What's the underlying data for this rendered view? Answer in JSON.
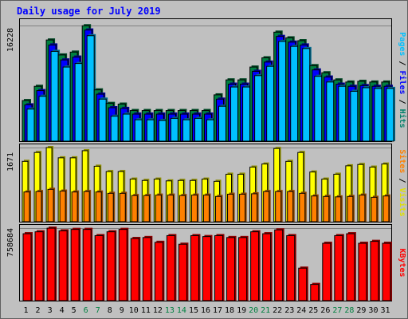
{
  "chart_data": {
    "type": "bar",
    "title": "Daily usage for July 2019",
    "categories": [
      "1",
      "2",
      "3",
      "4",
      "5",
      "6",
      "7",
      "8",
      "9",
      "10",
      "11",
      "12",
      "13",
      "14",
      "15",
      "16",
      "17",
      "18",
      "19",
      "20",
      "21",
      "22",
      "23",
      "24",
      "25",
      "26",
      "27",
      "28",
      "29",
      "30",
      "31"
    ],
    "weekend_days": [
      "6",
      "7",
      "13",
      "14",
      "20",
      "21",
      "27",
      "28"
    ],
    "panels": [
      {
        "name": "hits-files-pages",
        "max_label": "16228",
        "max_value": 16228,
        "side_labels": [
          {
            "text": "Pages",
            "color": "#00c0ff"
          },
          {
            "text": " / ",
            "color": "#000000"
          },
          {
            "text": "Files",
            "color": "#0000ff"
          },
          {
            "text": " / ",
            "color": "#000000"
          },
          {
            "text": "Hits",
            "color": "#00806a"
          }
        ],
        "series": [
          {
            "name": "Hits",
            "color": "#008040",
            "values": [
              5700,
              7700,
              14200,
              12100,
              12500,
              16200,
              7200,
              5300,
              5200,
              4300,
              4300,
              4300,
              4300,
              4300,
              4300,
              4300,
              6500,
              8600,
              8600,
              10400,
              11700,
              15300,
              14500,
              14100,
              10600,
              9600,
              8600,
              8300,
              8400,
              8300,
              8300
            ]
          },
          {
            "name": "Files",
            "color": "#0000ff",
            "values": [
              5100,
              7100,
              13500,
              11400,
              11800,
              15600,
              6600,
              4700,
              4600,
              3800,
              3800,
              3800,
              3800,
              3800,
              3800,
              3800,
              5900,
              8000,
              8000,
              9800,
              11100,
              14700,
              13900,
              13500,
              10000,
              9000,
              8000,
              7700,
              7800,
              7700,
              7700
            ]
          },
          {
            "name": "Pages",
            "color": "#00c0ff",
            "values": [
              4500,
              6300,
              12600,
              10400,
              10900,
              14800,
              5900,
              3500,
              3800,
              3000,
              3000,
              2900,
              3200,
              3000,
              3200,
              3000,
              4900,
              7600,
              7600,
              9200,
              10500,
              14000,
              13300,
              13000,
              9100,
              8300,
              7700,
              7000,
              7500,
              7400,
              7400
            ]
          }
        ]
      },
      {
        "name": "visits-sites",
        "max_label": "1671",
        "max_value": 1671,
        "side_labels": [
          {
            "text": "Sites",
            "color": "#ff8000"
          },
          {
            "text": " / ",
            "color": "#000000"
          },
          {
            "text": "Visits",
            "color": "#e0e000"
          }
        ],
        "series": [
          {
            "name": "Visits",
            "color": "#ffff00",
            "values": [
              1360,
              1560,
              1670,
              1440,
              1440,
              1600,
              1250,
              1130,
              1130,
              960,
              930,
              960,
              920,
              930,
              930,
              960,
              910,
              1070,
              1070,
              1230,
              1300,
              1650,
              1360,
              1560,
              1120,
              960,
              1070,
              1260,
              1290,
              1230,
              1300
            ]
          },
          {
            "name": "Sites",
            "color": "#ff8000",
            "values": [
              670,
              680,
              730,
              690,
              670,
              680,
              670,
              640,
              640,
              590,
              590,
              600,
              600,
              590,
              600,
              600,
              570,
              620,
              620,
              630,
              680,
              680,
              680,
              640,
              580,
              570,
              560,
              570,
              600,
              550,
              580
            ]
          }
        ]
      },
      {
        "name": "kbytes",
        "max_label": "758684",
        "max_value": 758684,
        "side_labels": [
          {
            "text": "KBytes",
            "color": "#ff0000"
          }
        ],
        "series": [
          {
            "name": "KBytes",
            "color": "#ff0000",
            "values": [
              700000,
              720000,
              758000,
              730000,
              745000,
              745000,
              680000,
              720000,
              745000,
              650000,
              660000,
              610000,
              680000,
              590000,
              680000,
              670000,
              680000,
              660000,
              660000,
              720000,
              700000,
              740000,
              680000,
              340000,
              170000,
              600000,
              680000,
              700000,
              600000,
              620000,
              600000
            ]
          }
        ]
      }
    ]
  }
}
